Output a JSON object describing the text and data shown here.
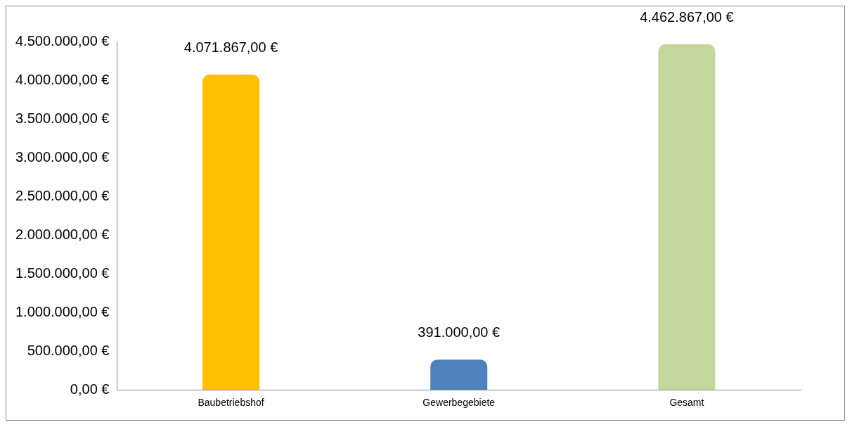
{
  "chart_data": {
    "type": "bar",
    "categories": [
      "Baubetriebshof",
      "Gewerbegebiete",
      "Gesamt"
    ],
    "values": [
      4071867,
      391000,
      4462867
    ],
    "colors": [
      "#ffc000",
      "#4f81bd",
      "#c3d69b"
    ],
    "value_labels": [
      "4.071.867,00 €",
      "391.000,00 €",
      "4.462.867,00 €"
    ],
    "ylim": [
      0,
      4500000
    ],
    "yticks": [
      {
        "value": 0,
        "label": "0,00 €"
      },
      {
        "value": 500000,
        "label": "500.000,00 €"
      },
      {
        "value": 1000000,
        "label": "1.000.000,00 €"
      },
      {
        "value": 1500000,
        "label": "1.500.000,00 €"
      },
      {
        "value": 2000000,
        "label": "2.000.000,00 €"
      },
      {
        "value": 2500000,
        "label": "2.500.000,00 €"
      },
      {
        "value": 3000000,
        "label": "3.000.000,00 €"
      },
      {
        "value": 3500000,
        "label": "3.500.000,00 €"
      },
      {
        "value": 4000000,
        "label": "4.000.000,00 €"
      },
      {
        "value": 4500000,
        "label": "4.500.000,00 €"
      }
    ],
    "grid": false,
    "legend": false
  }
}
